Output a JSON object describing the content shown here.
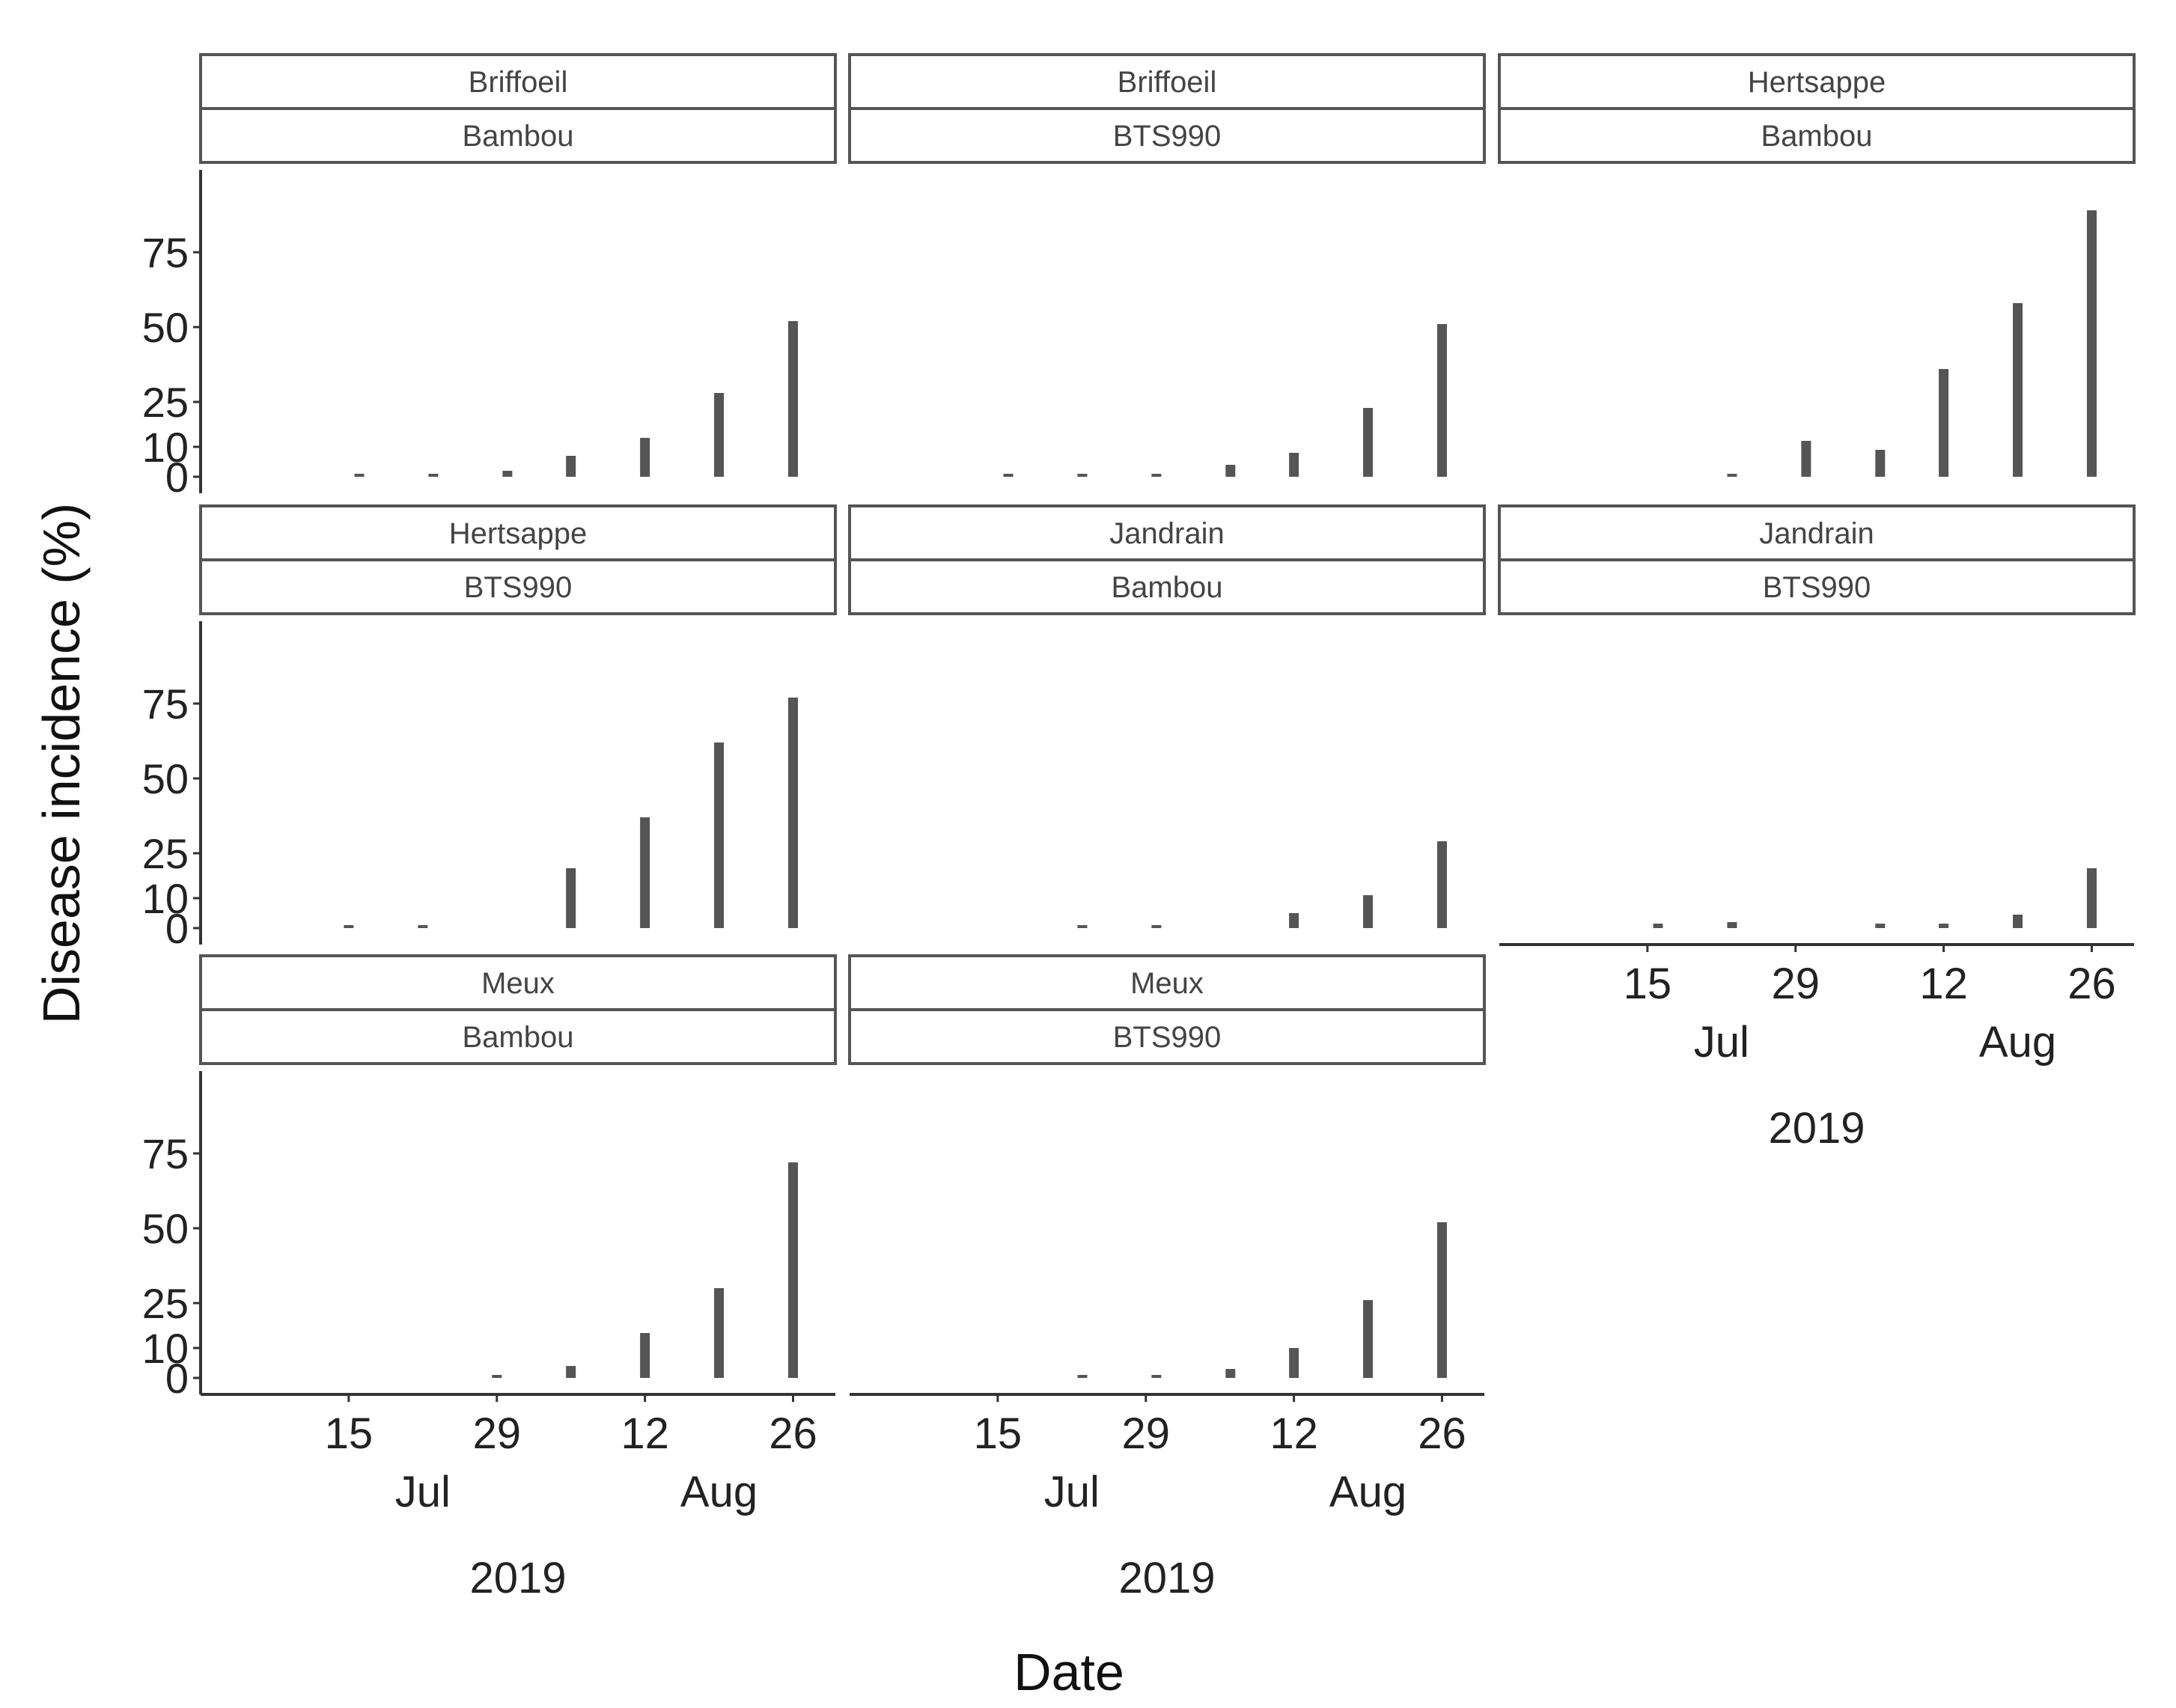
{
  "chart": {
    "x_axis_label": "Date",
    "y_axis_label": "Disease incidence (%)"
  },
  "chart_data": {
    "type": "bar",
    "xlabel": "Date",
    "ylabel": "Disease incidence (%)",
    "ylim": [
      0,
      95
    ],
    "y_ticks": [
      0,
      10,
      25,
      50,
      75
    ],
    "x_range": [
      "2019-07-01",
      "2019-08-30"
    ],
    "x_ticks": [
      {
        "date": "2019-07-15",
        "label": "15"
      },
      {
        "date": "2019-07-29",
        "label": "29"
      },
      {
        "date": "2019-08-12",
        "label": "12"
      },
      {
        "date": "2019-08-26",
        "label": "26"
      }
    ],
    "x_month_labels": [
      {
        "date": "2019-07-22",
        "label": "Jul"
      },
      {
        "date": "2019-08-19",
        "label": "Aug"
      }
    ],
    "x_year_label": "2019",
    "bar_color": "#555555",
    "grid": false,
    "layout": "facet grid, 3 columns, 8 panels",
    "facets": [
      {
        "site": "Briffoeil",
        "variety": "Bambou",
        "x": [
          "2019-07-16",
          "2019-07-23",
          "2019-07-30",
          "2019-08-05",
          "2019-08-12",
          "2019-08-19",
          "2019-08-26"
        ],
        "values": [
          0.5,
          0.5,
          2,
          7,
          13,
          28,
          52
        ]
      },
      {
        "site": "Briffoeil",
        "variety": "BTS990",
        "x": [
          "2019-07-16",
          "2019-07-23",
          "2019-07-30",
          "2019-08-06",
          "2019-08-12",
          "2019-08-19",
          "2019-08-26"
        ],
        "values": [
          0.5,
          0.5,
          0.5,
          4,
          8,
          23,
          51
        ]
      },
      {
        "site": "Hertsappe",
        "variety": "Bambou",
        "x": [
          "2019-07-23",
          "2019-07-30",
          "2019-08-06",
          "2019-08-12",
          "2019-08-19",
          "2019-08-26"
        ],
        "values": [
          0.5,
          12,
          9,
          36,
          58,
          89
        ]
      },
      {
        "site": "Hertsappe",
        "variety": "BTS990",
        "x": [
          "2019-07-15",
          "2019-07-22",
          "2019-08-05",
          "2019-08-12",
          "2019-08-19",
          "2019-08-26"
        ],
        "values": [
          0.5,
          0.5,
          20,
          37,
          62,
          77
        ]
      },
      {
        "site": "Jandrain",
        "variety": "Bambou",
        "x": [
          "2019-07-23",
          "2019-07-30",
          "2019-08-12",
          "2019-08-19",
          "2019-08-26"
        ],
        "values": [
          0.5,
          0.5,
          5,
          11,
          29
        ]
      },
      {
        "site": "Jandrain",
        "variety": "BTS990",
        "x": [
          "2019-07-16",
          "2019-07-23",
          "2019-08-06",
          "2019-08-12",
          "2019-08-19",
          "2019-08-26"
        ],
        "values": [
          1.5,
          2,
          1.5,
          1.5,
          4.5,
          20
        ]
      },
      {
        "site": "Meux",
        "variety": "Bambou",
        "x": [
          "2019-07-29",
          "2019-08-05",
          "2019-08-12",
          "2019-08-19",
          "2019-08-26"
        ],
        "values": [
          0.5,
          4,
          15,
          30,
          72
        ]
      },
      {
        "site": "Meux",
        "variety": "BTS990",
        "x": [
          "2019-07-23",
          "2019-07-30",
          "2019-08-06",
          "2019-08-12",
          "2019-08-19",
          "2019-08-26"
        ],
        "values": [
          0.5,
          0.5,
          3,
          10,
          26,
          52
        ]
      }
    ]
  }
}
